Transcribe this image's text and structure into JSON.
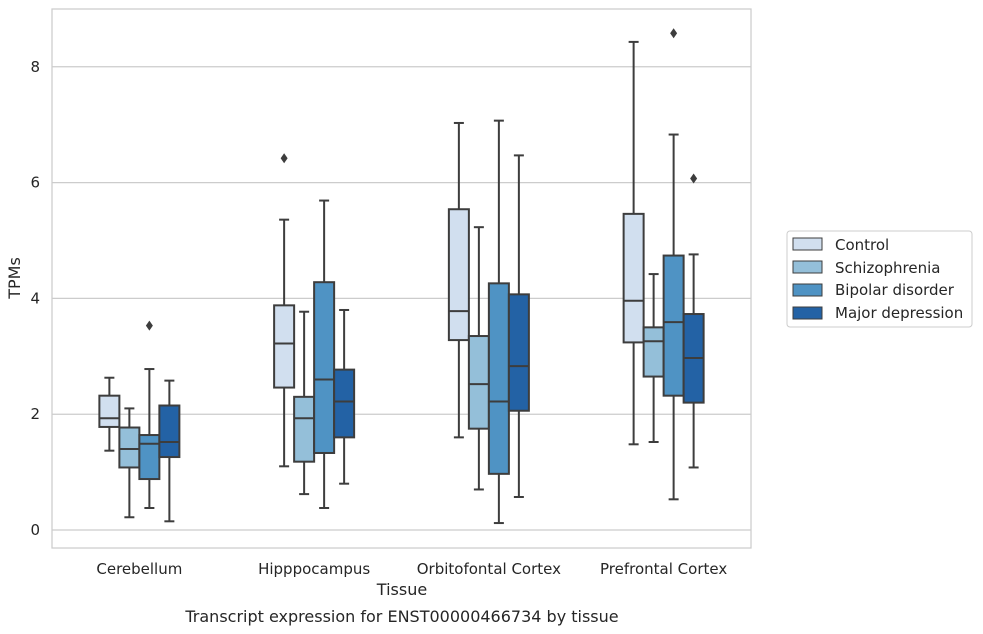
{
  "chart_data": {
    "type": "box",
    "xlabel": "Tissue",
    "ylabel": "TPMs",
    "caption": "Transcript expression for ENST00000466734 by tissue",
    "ylim": [
      -0.3,
      9.0
    ],
    "yticks": [
      0,
      2,
      4,
      6,
      8
    ],
    "grid": true,
    "legend_position": "right",
    "categories": [
      "Cerebellum",
      "Hipppocampus",
      "Orbitofontal Cortex",
      "Prefrontal Cortex"
    ],
    "series": [
      {
        "name": "Control",
        "color": "#d1dfef",
        "boxes": [
          {
            "whisker_low": 1.37,
            "q1": 1.78,
            "median": 1.93,
            "q3": 2.32,
            "whisker_high": 2.63,
            "outliers": []
          },
          {
            "whisker_low": 1.1,
            "q1": 2.46,
            "median": 3.22,
            "q3": 3.88,
            "whisker_high": 5.36,
            "outliers": [
              6.42
            ]
          },
          {
            "whisker_low": 1.6,
            "q1": 3.28,
            "median": 3.78,
            "q3": 5.54,
            "whisker_high": 7.03,
            "outliers": []
          },
          {
            "whisker_low": 1.48,
            "q1": 3.24,
            "median": 3.96,
            "q3": 5.46,
            "whisker_high": 8.43,
            "outliers": []
          }
        ]
      },
      {
        "name": "Schizophrenia",
        "color": "#94bfd9",
        "boxes": [
          {
            "whisker_low": 0.22,
            "q1": 1.08,
            "median": 1.4,
            "q3": 1.77,
            "whisker_high": 2.1,
            "outliers": []
          },
          {
            "whisker_low": 0.62,
            "q1": 1.18,
            "median": 1.93,
            "q3": 2.3,
            "whisker_high": 3.77,
            "outliers": []
          },
          {
            "whisker_low": 0.7,
            "q1": 1.75,
            "median": 2.52,
            "q3": 3.35,
            "whisker_high": 5.23,
            "outliers": []
          },
          {
            "whisker_low": 1.52,
            "q1": 2.65,
            "median": 3.26,
            "q3": 3.5,
            "whisker_high": 4.42,
            "outliers": []
          }
        ]
      },
      {
        "name": "Bipolar disorder",
        "color": "#4f93c4",
        "boxes": [
          {
            "whisker_low": 0.38,
            "q1": 0.88,
            "median": 1.49,
            "q3": 1.64,
            "whisker_high": 2.78,
            "outliers": [
              3.53
            ]
          },
          {
            "whisker_low": 0.38,
            "q1": 1.33,
            "median": 2.6,
            "q3": 4.28,
            "whisker_high": 5.69,
            "outliers": []
          },
          {
            "whisker_low": 0.12,
            "q1": 0.97,
            "median": 2.22,
            "q3": 4.26,
            "whisker_high": 7.07,
            "outliers": []
          },
          {
            "whisker_low": 0.53,
            "q1": 2.32,
            "median": 3.59,
            "q3": 4.74,
            "whisker_high": 6.83,
            "outliers": [
              8.58
            ]
          }
        ]
      },
      {
        "name": "Major depression",
        "color": "#2362a5",
        "boxes": [
          {
            "whisker_low": 0.15,
            "q1": 1.26,
            "median": 1.52,
            "q3": 2.15,
            "whisker_high": 2.58,
            "outliers": []
          },
          {
            "whisker_low": 0.8,
            "q1": 1.6,
            "median": 2.22,
            "q3": 2.77,
            "whisker_high": 3.8,
            "outliers": []
          },
          {
            "whisker_low": 0.57,
            "q1": 2.06,
            "median": 2.83,
            "q3": 4.07,
            "whisker_high": 6.47,
            "outliers": []
          },
          {
            "whisker_low": 1.08,
            "q1": 2.2,
            "median": 2.97,
            "q3": 3.73,
            "whisker_high": 4.76,
            "outliers": [
              6.07
            ]
          }
        ]
      }
    ],
    "style": {
      "edge_color": "#3d3d3d",
      "grid_color": "#cccccc",
      "frame_color": "#cccccc"
    }
  }
}
